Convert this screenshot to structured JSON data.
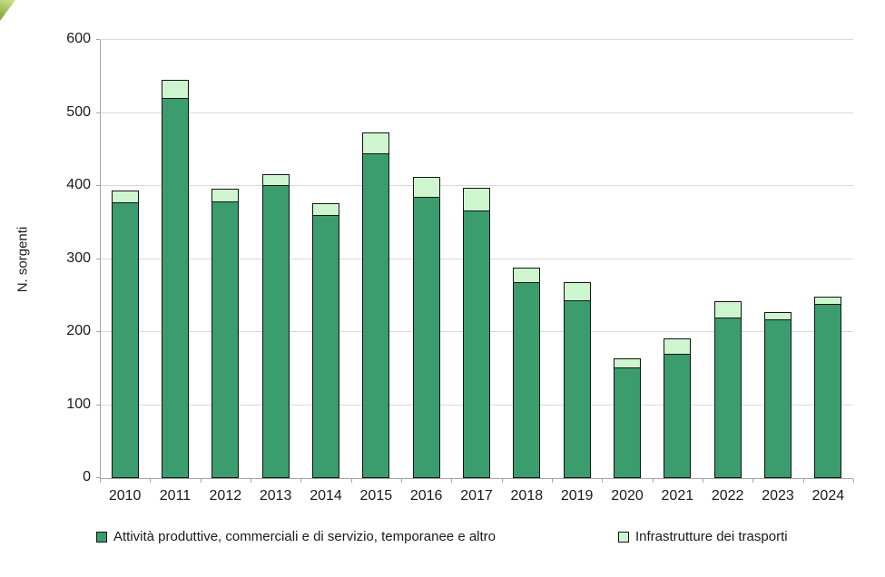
{
  "chart_data": {
    "type": "bar",
    "stacked": true,
    "title": "",
    "xlabel": "",
    "ylabel": "N. sorgenti",
    "ylim": [
      0,
      600
    ],
    "ytick_step": 100,
    "grid": true,
    "legend_position": "bottom",
    "categories": [
      "2010",
      "2011",
      "2012",
      "2013",
      "2014",
      "2015",
      "2016",
      "2017",
      "2018",
      "2019",
      "2020",
      "2021",
      "2022",
      "2023",
      "2024"
    ],
    "series": [
      {
        "name": "Attività produttive, commerciali e di servizio, temporanee e altro",
        "color": "#3b9c6e",
        "values": [
          378,
          520,
          379,
          401,
          360,
          445,
          385,
          366,
          268,
          243,
          152,
          170,
          220,
          218,
          238
        ]
      },
      {
        "name": "Infrastrutture dei trasporti",
        "color": "#cdf6ce",
        "values": [
          16,
          25,
          17,
          15,
          17,
          28,
          28,
          32,
          20,
          25,
          12,
          21,
          22,
          9,
          10
        ]
      }
    ],
    "totals": [
      394,
      545,
      396,
      416,
      377,
      473,
      413,
      398,
      288,
      268,
      164,
      191,
      242,
      227,
      248
    ]
  },
  "colors": {
    "gridline": "#d9d9d9",
    "axis": "#a6a6a6",
    "bar_border": "#141414",
    "text": "#1a1a1a",
    "corner_triangle": "#86ad3f"
  }
}
